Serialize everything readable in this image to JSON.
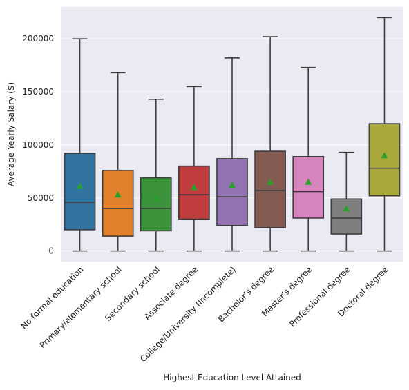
{
  "chart_data": {
    "type": "box",
    "xlabel": "Highest Education Level Attained",
    "ylabel": "Average Yearly Salary ($)",
    "ylim": [
      -10000,
      230000
    ],
    "yticks": [
      0,
      50000,
      100000,
      150000,
      200000
    ],
    "ytick_labels": [
      "0",
      "50000",
      "100000",
      "150000",
      "200000"
    ],
    "grid": true,
    "mean_marker": "triangle",
    "mean_color": "#2ca02c",
    "categories": [
      "No formal education",
      "Primary/elementary school",
      "Secondary school",
      "Associate degree",
      "College/University (Incomplete)",
      "Bachelor's degree",
      "Master's degree",
      "Professional degree",
      "Doctoral degree"
    ],
    "boxes": [
      {
        "min": 0,
        "q1": 20000,
        "median": 46000,
        "q3": 92000,
        "max": 200000,
        "mean": 61000,
        "color": "#3274a1"
      },
      {
        "min": 0,
        "q1": 14000,
        "median": 40000,
        "q3": 76000,
        "max": 168000,
        "mean": 53000,
        "color": "#e1812c"
      },
      {
        "min": 0,
        "q1": 19000,
        "median": 40000,
        "q3": 69000,
        "max": 143000,
        "mean": 50000,
        "color": "#3a923a"
      },
      {
        "min": 0,
        "q1": 30000,
        "median": 53000,
        "q3": 80000,
        "max": 155000,
        "mean": 60000,
        "color": "#c03d3e"
      },
      {
        "min": 0,
        "q1": 24000,
        "median": 51000,
        "q3": 87000,
        "max": 182000,
        "mean": 62000,
        "color": "#9372b2"
      },
      {
        "min": 0,
        "q1": 22000,
        "median": 57000,
        "q3": 94000,
        "max": 202000,
        "mean": 65000,
        "color": "#845b53"
      },
      {
        "min": 0,
        "q1": 31000,
        "median": 56000,
        "q3": 89000,
        "max": 173000,
        "mean": 65000,
        "color": "#d684bd"
      },
      {
        "min": 0,
        "q1": 16000,
        "median": 31000,
        "q3": 49000,
        "max": 93000,
        "mean": 40000,
        "color": "#7f7f7f"
      },
      {
        "min": 0,
        "q1": 52000,
        "median": 78000,
        "q3": 120000,
        "max": 220000,
        "mean": 90000,
        "color": "#a9a93b"
      }
    ]
  }
}
